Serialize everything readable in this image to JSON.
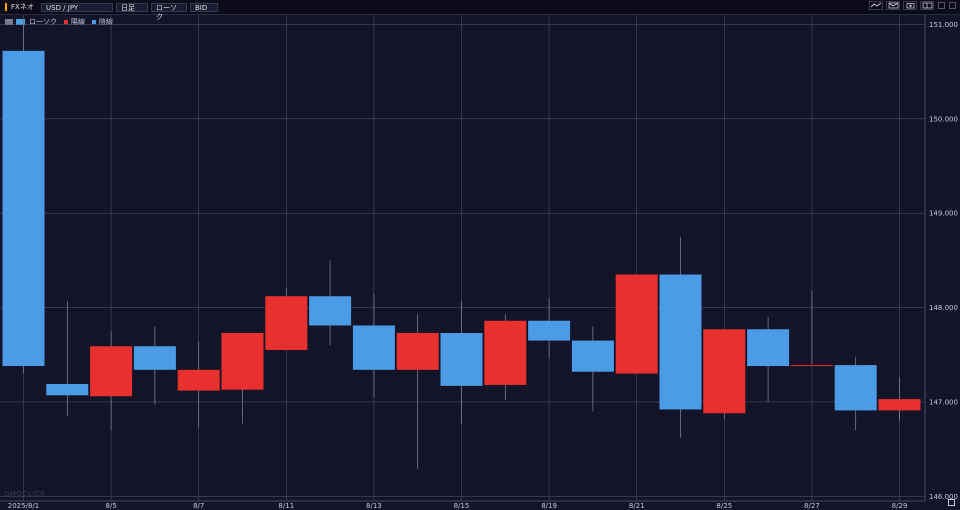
{
  "toolbar": {
    "brand": "FXネオ",
    "pair": "USD / JPY",
    "period": "日足",
    "chart_style": "ローソク",
    "price_type": "BID",
    "icons": [
      "line-chart-icon",
      "envelope-chart-icon",
      "camera-icon",
      "layout-icon",
      "settings-icon",
      "close-icon"
    ]
  },
  "legend": {
    "label": "ローソク",
    "up_label": "陽線",
    "down_label": "陰線"
  },
  "watermark": "GMOCLICK",
  "colors": {
    "background": "#141428",
    "grid": "#5a5a70",
    "up": "#e8302e",
    "down": "#4b9be6",
    "axis_text": "#c8c8d8"
  },
  "chart_data": {
    "type": "candlestick",
    "title": "",
    "xlabel": "",
    "ylabel": "",
    "ylim": [
      145.95,
      151.1
    ],
    "y_ticks": [
      146.0,
      147.0,
      148.0,
      149.0,
      150.0,
      151.0
    ],
    "y_tick_labels": [
      "146.000",
      "147.000",
      "148.000",
      "149.000",
      "150.000",
      "151.000"
    ],
    "x_tick_labels": [
      {
        "label": "2025/8/1",
        "index": 0
      },
      {
        "label": "8/5",
        "index": 2
      },
      {
        "label": "8/7",
        "index": 4
      },
      {
        "label": "8/11",
        "index": 6
      },
      {
        "label": "8/13",
        "index": 8
      },
      {
        "label": "8/15",
        "index": 10
      },
      {
        "label": "8/19",
        "index": 12
      },
      {
        "label": "8/21",
        "index": 14
      },
      {
        "label": "8/25",
        "index": 16
      },
      {
        "label": "8/27",
        "index": 18
      },
      {
        "label": "8/29",
        "index": 20
      }
    ],
    "candles": [
      {
        "o": 150.72,
        "h": 151.0,
        "l": 147.3,
        "c": 147.38
      },
      {
        "o": 147.19,
        "h": 148.07,
        "l": 146.85,
        "c": 147.07
      },
      {
        "o": 147.06,
        "h": 147.75,
        "l": 146.7,
        "c": 147.59
      },
      {
        "o": 147.59,
        "h": 147.8,
        "l": 146.97,
        "c": 147.34
      },
      {
        "o": 147.12,
        "h": 147.64,
        "l": 146.73,
        "c": 147.34
      },
      {
        "o": 147.13,
        "h": 147.73,
        "l": 146.77,
        "c": 147.73
      },
      {
        "o": 147.55,
        "h": 148.2,
        "l": 147.55,
        "c": 148.12
      },
      {
        "o": 148.12,
        "h": 148.5,
        "l": 147.6,
        "c": 147.81
      },
      {
        "o": 147.81,
        "h": 148.15,
        "l": 147.05,
        "c": 147.34
      },
      {
        "o": 147.34,
        "h": 147.93,
        "l": 146.29,
        "c": 147.73
      },
      {
        "o": 147.73,
        "h": 148.07,
        "l": 146.77,
        "c": 147.17
      },
      {
        "o": 147.18,
        "h": 147.93,
        "l": 147.02,
        "c": 147.86
      },
      {
        "o": 147.86,
        "h": 148.1,
        "l": 147.46,
        "c": 147.65
      },
      {
        "o": 147.65,
        "h": 147.8,
        "l": 146.9,
        "c": 147.32
      },
      {
        "o": 147.3,
        "h": 148.35,
        "l": 147.3,
        "c": 148.35
      },
      {
        "o": 148.35,
        "h": 148.75,
        "l": 146.62,
        "c": 146.92
      },
      {
        "o": 146.88,
        "h": 147.75,
        "l": 146.82,
        "c": 147.77
      },
      {
        "o": 147.77,
        "h": 147.9,
        "l": 147.0,
        "c": 147.38
      },
      {
        "o": 147.38,
        "h": 148.18,
        "l": 147.4,
        "c": 147.39
      },
      {
        "o": 147.39,
        "h": 147.48,
        "l": 146.7,
        "c": 146.91
      },
      {
        "o": 146.91,
        "h": 147.26,
        "l": 146.8,
        "c": 147.03
      }
    ]
  }
}
